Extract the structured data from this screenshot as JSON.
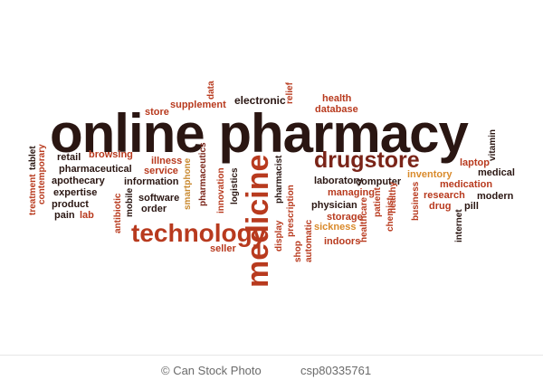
{
  "title_words": {
    "online_pharmacy": "online pharmacy",
    "drugstore": "drugstore",
    "technology": "technology",
    "medicine": "medicine"
  },
  "words": {
    "store": "store",
    "supplement": "supplement",
    "data": "data",
    "electronic": "electronic",
    "relief": "relief",
    "health": "health",
    "database": "database",
    "vitamin": "vitamin",
    "tablet": "tablet",
    "contemporary": "contemporary",
    "treatment": "treatment",
    "retail": "retail",
    "browsing": "browsing",
    "pharmaceutical": "pharmaceutical",
    "apothecary": "apothecary",
    "expertise": "expertise",
    "product": "product",
    "pain": "pain",
    "lab": "lab",
    "antibiotic": "antibiotic",
    "mobile": "mobile",
    "illness": "illness",
    "service": "service",
    "information": "information",
    "software": "software",
    "order": "order",
    "smartphone": "smartphone",
    "pharmaceutics": "pharmaceutics",
    "innovation": "innovation",
    "logistics": "logistics",
    "seller": "seller",
    "display": "display",
    "pharmacist": "pharmacist",
    "prescription": "prescription",
    "shop": "shop",
    "automatic": "automatic",
    "laboratory": "laboratory",
    "managing": "managing",
    "physician": "physician",
    "storage": "storage",
    "sickness": "sickness",
    "indoors": "indoors",
    "computer": "computer",
    "healthcare": "healthcare",
    "patient": "patient",
    "chemist": "chemist",
    "healthy": "healthy",
    "business": "business",
    "inventory": "inventory",
    "laptop": "laptop",
    "medical": "medical",
    "medication": "medication",
    "research": "research",
    "modern": "modern",
    "drug": "drug",
    "internet": "internet",
    "pill": "pill"
  },
  "footer": {
    "logo": "© Can Stock Photo",
    "id": "csp80335761"
  }
}
